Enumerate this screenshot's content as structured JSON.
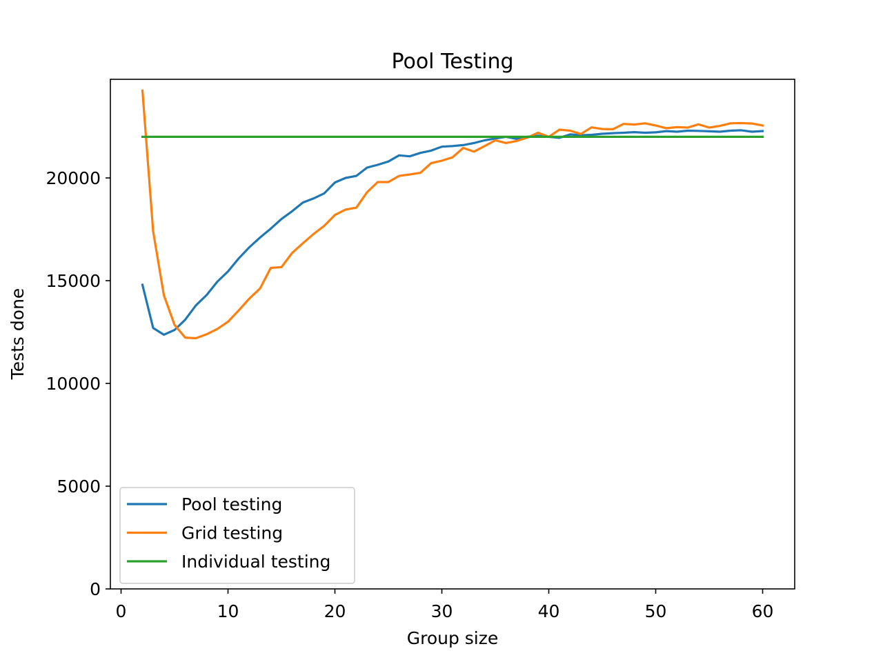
{
  "chart_data": {
    "type": "line",
    "title": "Pool Testing",
    "xlabel": "Group size",
    "ylabel": "Tests done",
    "xlim": [
      -1,
      63
    ],
    "ylim": [
      0,
      24800
    ],
    "xticks": [
      0,
      10,
      20,
      30,
      40,
      50,
      60
    ],
    "yticks": [
      0,
      5000,
      10000,
      15000,
      20000
    ],
    "grid": false,
    "legend_position": "lower-left",
    "series": [
      {
        "name": "Pool testing",
        "color": "#1f77b4",
        "x": [
          2,
          3,
          4,
          5,
          6,
          7,
          8,
          9,
          10,
          11,
          12,
          13,
          14,
          15,
          16,
          17,
          18,
          19,
          20,
          21,
          22,
          23,
          24,
          25,
          26,
          27,
          28,
          29,
          30,
          31,
          32,
          33,
          34,
          35,
          36,
          37,
          38,
          39,
          40,
          41,
          42,
          43,
          44,
          45,
          46,
          47,
          48,
          49,
          50,
          51,
          52,
          53,
          54,
          55,
          56,
          57,
          58,
          59,
          60
        ],
        "values": [
          14800,
          12700,
          12370,
          12600,
          13100,
          13800,
          14300,
          14950,
          15450,
          16080,
          16630,
          17100,
          17530,
          18000,
          18380,
          18800,
          19000,
          19250,
          19780,
          20000,
          20100,
          20500,
          20640,
          20800,
          21100,
          21050,
          21220,
          21330,
          21520,
          21550,
          21600,
          21700,
          21830,
          21920,
          22000,
          21900,
          22000,
          22050,
          22000,
          21950,
          22120,
          22080,
          22100,
          22150,
          22180,
          22200,
          22230,
          22200,
          22220,
          22280,
          22250,
          22300,
          22290,
          22270,
          22250,
          22300,
          22320,
          22250,
          22280
        ]
      },
      {
        "name": "Grid testing",
        "color": "#ff7f0e",
        "x": [
          2,
          3,
          4,
          5,
          6,
          7,
          8,
          9,
          10,
          11,
          12,
          13,
          14,
          15,
          16,
          17,
          18,
          19,
          20,
          21,
          22,
          23,
          24,
          25,
          26,
          27,
          28,
          29,
          30,
          31,
          32,
          33,
          34,
          35,
          36,
          37,
          38,
          39,
          40,
          41,
          42,
          43,
          44,
          45,
          46,
          47,
          48,
          49,
          50,
          51,
          52,
          53,
          54,
          55,
          56,
          57,
          58,
          59,
          60
        ],
        "values": [
          24250,
          17400,
          14300,
          12850,
          12230,
          12200,
          12390,
          12650,
          13000,
          13550,
          14130,
          14620,
          15620,
          15660,
          16350,
          16820,
          17270,
          17670,
          18200,
          18460,
          18550,
          19300,
          19800,
          19800,
          20100,
          20170,
          20250,
          20720,
          20840,
          21000,
          21460,
          21280,
          21550,
          21830,
          21700,
          21800,
          21960,
          22200,
          22000,
          22350,
          22300,
          22140,
          22460,
          22380,
          22370,
          22630,
          22600,
          22660,
          22550,
          22420,
          22470,
          22450,
          22610,
          22450,
          22530,
          22660,
          22670,
          22650,
          22550
        ]
      },
      {
        "name": "Individual testing",
        "color": "#2ca02c",
        "x": [
          2,
          60
        ],
        "values": [
          22000,
          22000
        ]
      }
    ]
  }
}
